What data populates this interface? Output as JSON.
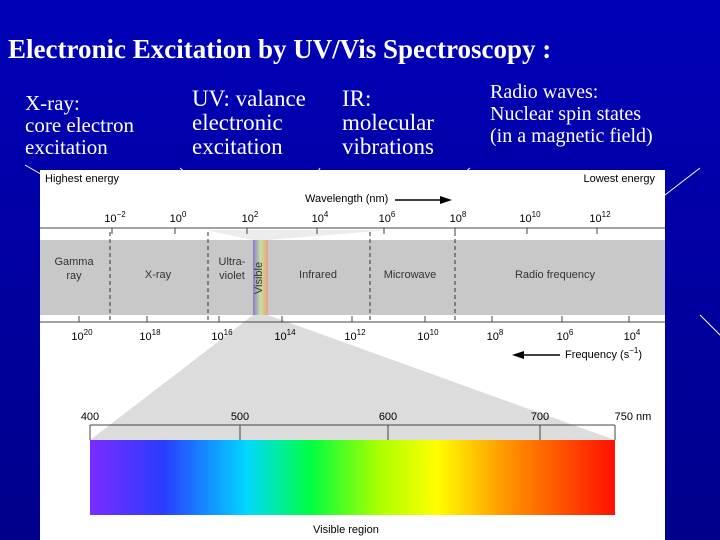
{
  "title": "Electronic Excitation by UV/Vis Spectroscopy :",
  "captions": [
    {
      "lines": [
        "X-ray:",
        "core electron",
        "excitation"
      ]
    },
    {
      "lines": [
        "UV: valance",
        "electronic",
        "excitation"
      ]
    },
    {
      "lines": [
        "IR:",
        "molecular",
        "vibrations"
      ]
    },
    {
      "lines": [
        "Radio waves:",
        "Nuclear spin states",
        "(in a magnetic field)"
      ]
    }
  ],
  "diagram": {
    "highest_energy": "Highest energy",
    "lowest_energy": "Lowest energy",
    "wavelength_label": "Wavelength (nm)",
    "wavelength_ticks": [
      {
        "base": "10",
        "exp": "−2"
      },
      {
        "base": "10",
        "exp": "0"
      },
      {
        "base": "10",
        "exp": "2"
      },
      {
        "base": "10",
        "exp": "4"
      },
      {
        "base": "10",
        "exp": "6"
      },
      {
        "base": "10",
        "exp": "8"
      },
      {
        "base": "10",
        "exp": "10"
      },
      {
        "base": "10",
        "exp": "12"
      }
    ],
    "regions": [
      {
        "lines": [
          "Gamma",
          "ray"
        ]
      },
      {
        "lines": [
          "X-ray"
        ]
      },
      {
        "lines": [
          "Ultra-",
          "violet"
        ]
      },
      {
        "lines": [
          "Visible"
        ]
      },
      {
        "lines": [
          "Infrared"
        ]
      },
      {
        "lines": [
          "Microwave"
        ]
      },
      {
        "lines": [
          "Radio frequency"
        ]
      }
    ],
    "frequency_ticks": [
      {
        "base": "10",
        "exp": "20"
      },
      {
        "base": "10",
        "exp": "18"
      },
      {
        "base": "10",
        "exp": "16"
      },
      {
        "base": "10",
        "exp": "14"
      },
      {
        "base": "10",
        "exp": "12"
      },
      {
        "base": "10",
        "exp": "10"
      },
      {
        "base": "10",
        "exp": "8"
      },
      {
        "base": "10",
        "exp": "6"
      },
      {
        "base": "10",
        "exp": "4"
      }
    ],
    "frequency_label": {
      "text": "Frequency (s",
      "sup": "−1",
      "end": ")"
    },
    "visible_ticks": [
      "400",
      "500",
      "600",
      "700",
      "750 nm"
    ],
    "visible_region": "Visible region"
  }
}
